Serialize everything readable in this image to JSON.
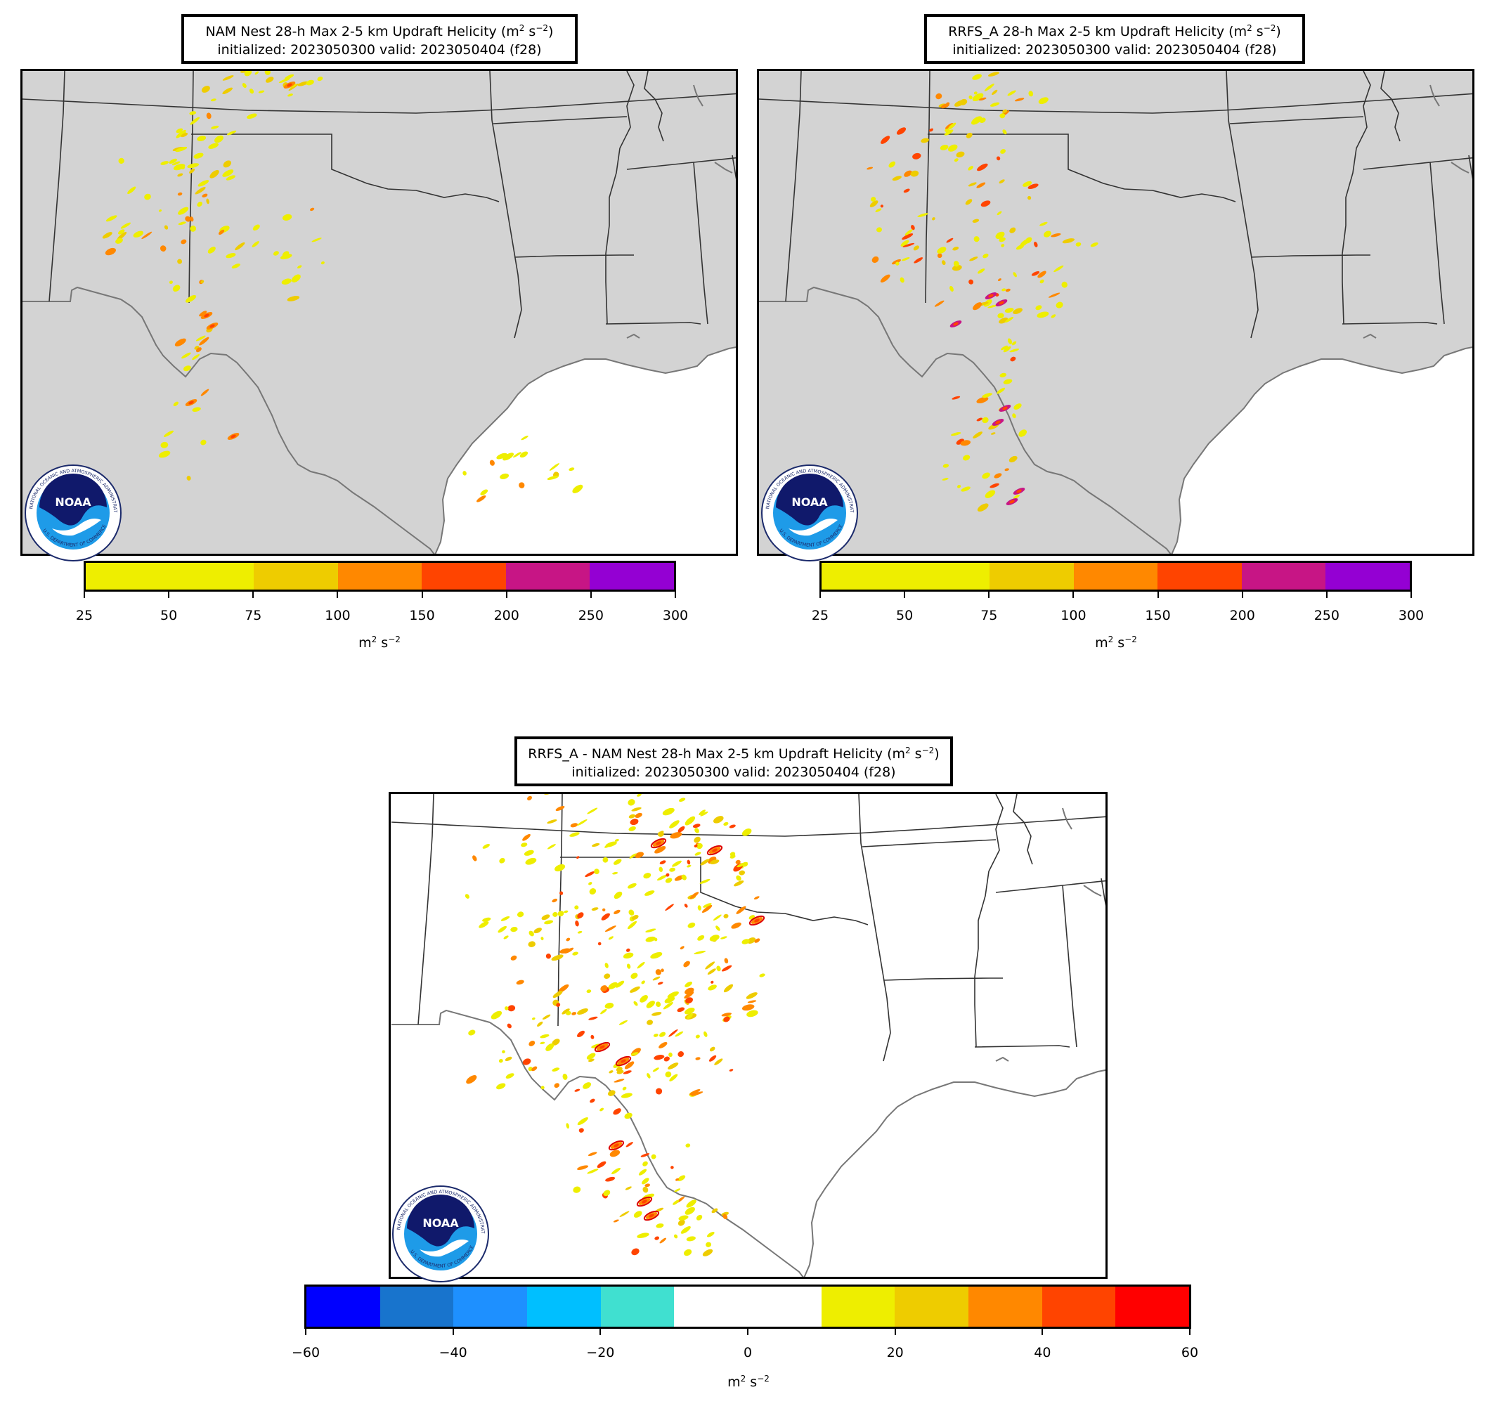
{
  "panels": [
    {
      "id": "nam",
      "title_line1": "NAM Nest 28-h Max 2-5 km Updraft Helicity (m",
      "title_sup": "2",
      "title_mid": " s",
      "title_sup2": "−2",
      "title_end": ")",
      "title_line2": "initialized: 2023050300 valid: 2023050404 (f28)",
      "land_color": "#d3d3d3",
      "colorbar": {
        "ticks": [
          "25",
          "50",
          "75",
          "100",
          "150",
          "200",
          "250",
          "300"
        ],
        "colors": [
          "#eeee00",
          "#eeee00",
          "#eecc00",
          "#ff8800",
          "#ff4400",
          "#c71585",
          "#9400d3"
        ],
        "unit_base": "m",
        "unit_sup": "2",
        "unit_mid": " s",
        "unit_sup2": "−2"
      }
    },
    {
      "id": "rrfs",
      "title_line1": "RRFS_A 28-h Max 2-5 km Updraft Helicity (m",
      "title_sup": "2",
      "title_mid": " s",
      "title_sup2": "−2",
      "title_end": ")",
      "title_line2": "initialized: 2023050300 valid: 2023050404 (f28)",
      "land_color": "#d3d3d3",
      "colorbar": {
        "ticks": [
          "25",
          "50",
          "75",
          "100",
          "150",
          "200",
          "250",
          "300"
        ],
        "colors": [
          "#eeee00",
          "#eeee00",
          "#eecc00",
          "#ff8800",
          "#ff4400",
          "#c71585",
          "#9400d3"
        ],
        "unit_base": "m",
        "unit_sup": "2",
        "unit_mid": " s",
        "unit_sup2": "−2"
      }
    },
    {
      "id": "diff",
      "title_line1": "RRFS_A - NAM Nest 28-h Max 2-5 km Updraft Helicity (m",
      "title_sup": "2",
      "title_mid": " s",
      "title_sup2": "−2",
      "title_end": ")",
      "title_line2": "initialized: 2023050300 valid: 2023050404 (f28)",
      "land_color": "#ffffff",
      "colorbar": {
        "ticks": [
          "−60",
          "−40",
          "−20",
          "0",
          "20",
          "40",
          "60"
        ],
        "colors": [
          "#0000ff",
          "#1874cd",
          "#1e90ff",
          "#00bfff",
          "#40e0d0",
          "#ffffff",
          "#ffffff",
          "#eeee00",
          "#eecc00",
          "#ff8800",
          "#ff4400",
          "#ff0000"
        ],
        "unit_base": "m",
        "unit_sup": "2",
        "unit_mid": " s",
        "unit_sup2": "−2"
      }
    }
  ],
  "logo": {
    "text": "NOAA",
    "ring_top": "NATIONAL OCEANIC AND ATMOSPHERIC ADMINISTRATION",
    "ring_bottom": "U.S. DEPARTMENT OF COMMERCE"
  }
}
